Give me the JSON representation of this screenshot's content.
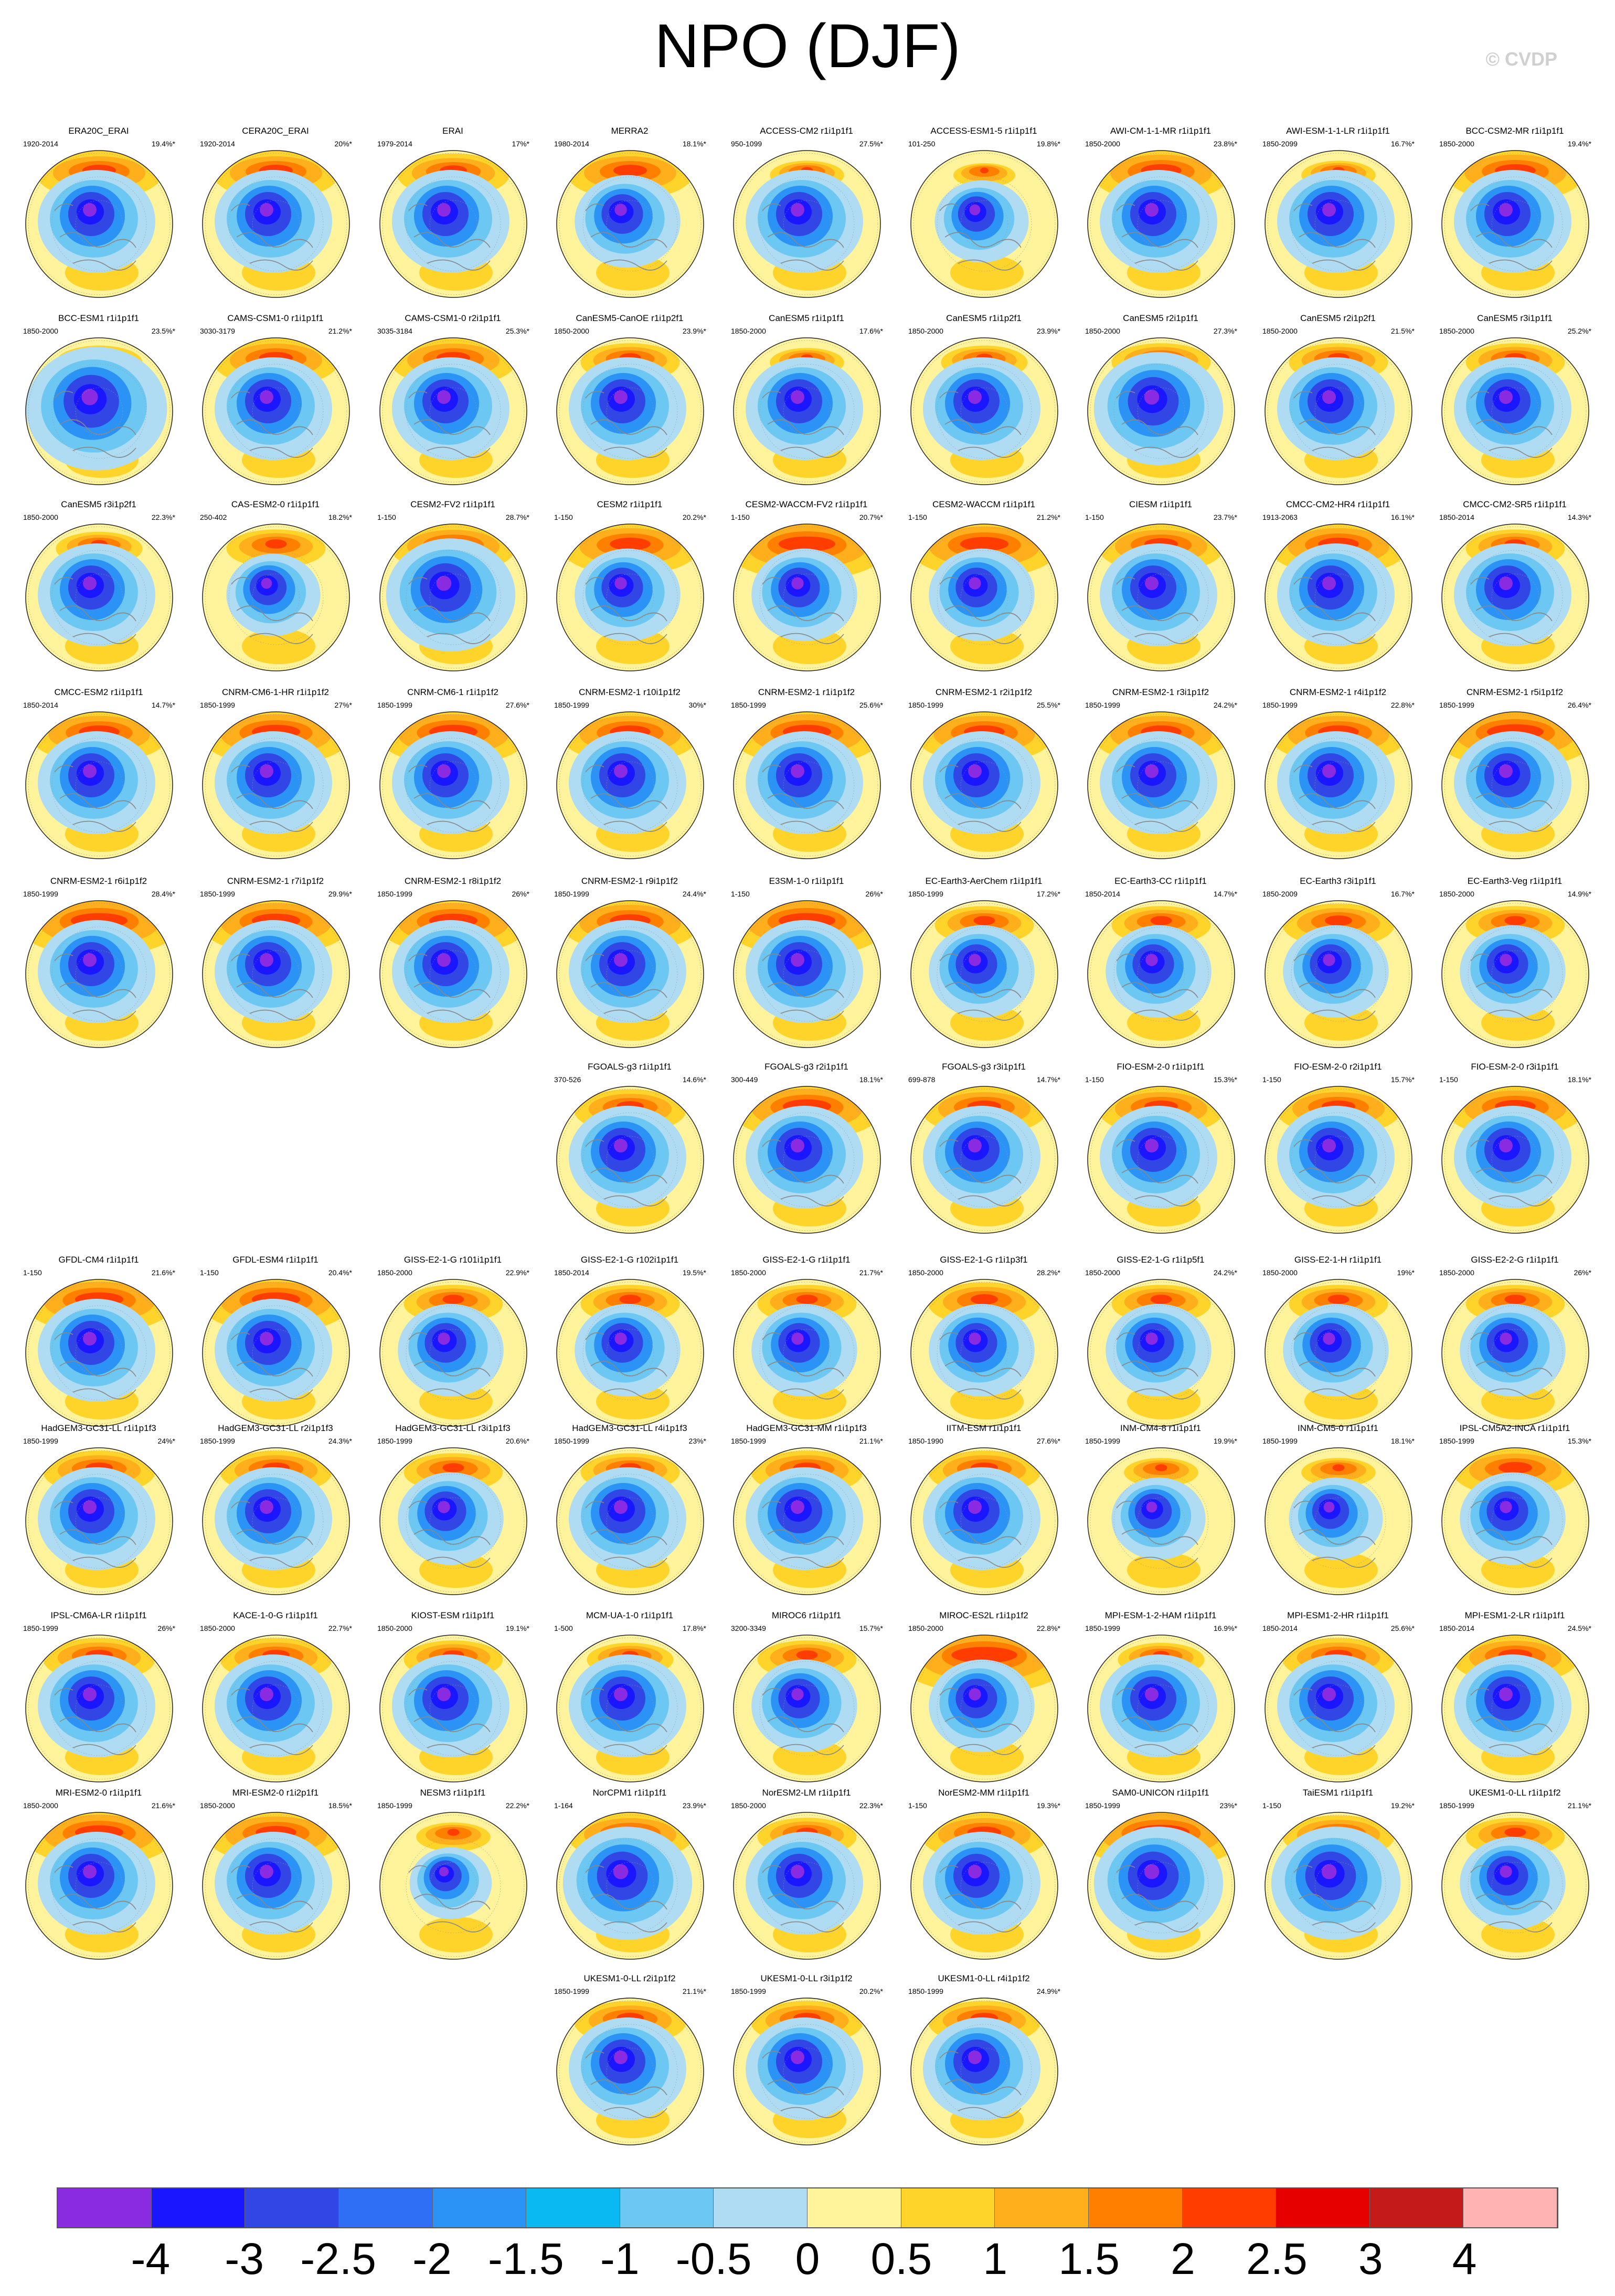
{
  "title": "NPO (DJF)",
  "watermark": "© CVDP",
  "chart_data": {
    "type": "heatmap",
    "title": "NPO (DJF)",
    "description_units": "",
    "colorbar": {
      "labels": [
        "-4",
        "-3",
        "-2.5",
        "-2",
        "-1.5",
        "-1",
        "-0.5",
        "0",
        "0.5",
        "1",
        "1.5",
        "2",
        "2.5",
        "3",
        "4"
      ],
      "colors": [
        "#8a2be2",
        "#1a16ff",
        "#3246e6",
        "#2f6ff5",
        "#2a93f5",
        "#0ab8f2",
        "#6cc8f2",
        "#afdcf2",
        "#fff39b",
        "#ffd42a",
        "#ffae1c",
        "#ff7f00",
        "#ff3d00",
        "#e60000",
        "#c41a1a",
        "#ffb3b3"
      ]
    },
    "panels": [
      {
        "name": "ERA20C_ERAI",
        "period": "1920-2014",
        "pct": "19.4%*",
        "row": 0,
        "col": 0,
        "pos": 1.0,
        "neg": 1.0
      },
      {
        "name": "CERA20C_ERAI",
        "period": "1920-2014",
        "pct": "20%*",
        "row": 0,
        "col": 1,
        "pos": 1.0,
        "neg": 1.0
      },
      {
        "name": "ERAI",
        "period": "1979-2014",
        "pct": "17%*",
        "row": 0,
        "col": 2,
        "pos": 0.9,
        "neg": 1.0
      },
      {
        "name": "MERRA2",
        "period": "1980-2014",
        "pct": "18.1%*",
        "row": 0,
        "col": 3,
        "pos": 1.0,
        "neg": 0.9
      },
      {
        "name": "ACCESS-CM2 r1i1p1f1",
        "period": "950-1099",
        "pct": "27.5%*",
        "row": 0,
        "col": 4,
        "pos": 0.6,
        "neg": 1.0
      },
      {
        "name": "ACCESS-ESM1-5 r1i1p1f1",
        "period": "101-250",
        "pct": "19.8%*",
        "row": 0,
        "col": 5,
        "pos": 0.5,
        "neg": 0.8
      },
      {
        "name": "AWI-CM-1-1-MR r1i1p1f1",
        "period": "1850-2000",
        "pct": "23.8%*",
        "row": 0,
        "col": 6,
        "pos": 1.1,
        "neg": 1.0
      },
      {
        "name": "AWI-ESM-1-1-LR r1i1p1f1",
        "period": "1850-2099",
        "pct": "16.7%*",
        "row": 0,
        "col": 7,
        "pos": 0.6,
        "neg": 1.0
      },
      {
        "name": "BCC-CSM2-MR r1i1p1f1",
        "period": "1850-2000",
        "pct": "19.4%*",
        "row": 0,
        "col": 8,
        "pos": 1.1,
        "neg": 1.0
      },
      {
        "name": "BCC-ESM1 r1i1p1f1",
        "period": "1850-2000",
        "pct": "23.5%*",
        "row": 1,
        "col": 0,
        "pos": 0.7,
        "neg": 1.2
      },
      {
        "name": "CAMS-CSM1-0 r1i1p1f1",
        "period": "3030-3179",
        "pct": "21.2%*",
        "row": 1,
        "col": 1,
        "pos": 1.0,
        "neg": 1.0
      },
      {
        "name": "CAMS-CSM1-0 r2i1p1f1",
        "period": "3035-3184",
        "pct": "25.3%*",
        "row": 1,
        "col": 2,
        "pos": 1.0,
        "neg": 1.0
      },
      {
        "name": "CanESM5-CanOE r1i1p2f1",
        "period": "1850-2000",
        "pct": "23.9%*",
        "row": 1,
        "col": 3,
        "pos": 0.8,
        "neg": 1.0
      },
      {
        "name": "CanESM5 r1i1p1f1",
        "period": "1850-2000",
        "pct": "17.6%*",
        "row": 1,
        "col": 4,
        "pos": 0.6,
        "neg": 1.0
      },
      {
        "name": "CanESM5 r1i1p2f1",
        "period": "1850-2000",
        "pct": "23.9%*",
        "row": 1,
        "col": 5,
        "pos": 0.7,
        "neg": 1.0
      },
      {
        "name": "CanESM5 r2i1p1f1",
        "period": "1850-2000",
        "pct": "27.3%*",
        "row": 1,
        "col": 6,
        "pos": 0.8,
        "neg": 1.1
      },
      {
        "name": "CanESM5 r2i1p2f1",
        "period": "1850-2000",
        "pct": "21.5%*",
        "row": 1,
        "col": 7,
        "pos": 0.8,
        "neg": 1.0
      },
      {
        "name": "CanESM5 r3i1p1f1",
        "period": "1850-2000",
        "pct": "25.2%*",
        "row": 1,
        "col": 8,
        "pos": 0.8,
        "neg": 1.0
      },
      {
        "name": "CanESM5 r3i1p2f1",
        "period": "1850-2000",
        "pct": "22.3%*",
        "row": 2,
        "col": 0,
        "pos": 0.7,
        "neg": 1.0
      },
      {
        "name": "CAS-ESM2-0 r1i1p1f1",
        "period": "250-402",
        "pct": "18.2%*",
        "row": 2,
        "col": 1,
        "pos": 0.8,
        "neg": 0.8
      },
      {
        "name": "CESM2-FV2 r1i1p1f1",
        "period": "1-150",
        "pct": "28.7%*",
        "row": 2,
        "col": 2,
        "pos": 1.0,
        "neg": 1.1
      },
      {
        "name": "CESM2 r1i1p1f1",
        "period": "1-150",
        "pct": "20.2%*",
        "row": 2,
        "col": 3,
        "pos": 1.1,
        "neg": 0.9
      },
      {
        "name": "CESM2-WACCM-FV2 r1i1p1f1",
        "period": "1-150",
        "pct": "20.7%*",
        "row": 2,
        "col": 4,
        "pos": 1.3,
        "neg": 0.9
      },
      {
        "name": "CESM2-WACCM r1i1p1f1",
        "period": "1-150",
        "pct": "21.2%*",
        "row": 2,
        "col": 5,
        "pos": 1.2,
        "neg": 0.9
      },
      {
        "name": "CIESM r1i1p1f1",
        "period": "1-150",
        "pct": "23.7%*",
        "row": 2,
        "col": 6,
        "pos": 1.0,
        "neg": 1.0
      },
      {
        "name": "CMCC-CM2-HR4 r1i1p1f1",
        "period": "1913-2063",
        "pct": "16.1%*",
        "row": 2,
        "col": 7,
        "pos": 1.1,
        "neg": 1.0
      },
      {
        "name": "CMCC-CM2-SR5 r1i1p1f1",
        "period": "1850-2014",
        "pct": "14.3%*",
        "row": 2,
        "col": 8,
        "pos": 0.8,
        "neg": 1.0
      },
      {
        "name": "CMCC-ESM2 r1i1p1f1",
        "period": "1850-2014",
        "pct": "14.7%*",
        "row": 3,
        "col": 0,
        "pos": 1.1,
        "neg": 1.0
      },
      {
        "name": "CNRM-CM6-1-HR r1i1p1f2",
        "period": "1850-1999",
        "pct": "27%*",
        "row": 3,
        "col": 1,
        "pos": 1.2,
        "neg": 1.0
      },
      {
        "name": "CNRM-CM6-1 r1i1p1f2",
        "period": "1850-1999",
        "pct": "27.6%*",
        "row": 3,
        "col": 2,
        "pos": 1.2,
        "neg": 1.0
      },
      {
        "name": "CNRM-ESM2-1 r10i1p1f2",
        "period": "1850-1999",
        "pct": "30%*",
        "row": 3,
        "col": 3,
        "pos": 1.1,
        "neg": 1.0
      },
      {
        "name": "CNRM-ESM2-1 r1i1p1f2",
        "period": "1850-1999",
        "pct": "25.6%*",
        "row": 3,
        "col": 4,
        "pos": 1.2,
        "neg": 1.0
      },
      {
        "name": "CNRM-ESM2-1 r2i1p1f2",
        "period": "1850-1999",
        "pct": "25.5%*",
        "row": 3,
        "col": 5,
        "pos": 1.1,
        "neg": 1.0
      },
      {
        "name": "CNRM-ESM2-1 r3i1p1f2",
        "period": "1850-1999",
        "pct": "24.2%*",
        "row": 3,
        "col": 6,
        "pos": 1.1,
        "neg": 1.0
      },
      {
        "name": "CNRM-ESM2-1 r4i1p1f2",
        "period": "1850-1999",
        "pct": "22.8%*",
        "row": 3,
        "col": 7,
        "pos": 1.1,
        "neg": 1.0
      },
      {
        "name": "CNRM-ESM2-1 r5i1p1f2",
        "period": "1850-1999",
        "pct": "26.4%*",
        "row": 3,
        "col": 8,
        "pos": 1.3,
        "neg": 1.0
      },
      {
        "name": "CNRM-ESM2-1 r6i1p1f2",
        "period": "1850-1999",
        "pct": "28.4%*",
        "row": 4,
        "col": 0,
        "pos": 1.3,
        "neg": 1.0
      },
      {
        "name": "CNRM-ESM2-1 r7i1p1f2",
        "period": "1850-1999",
        "pct": "29.9%*",
        "row": 4,
        "col": 1,
        "pos": 1.2,
        "neg": 1.0
      },
      {
        "name": "CNRM-ESM2-1 r8i1p1f2",
        "period": "1850-1999",
        "pct": "26%*",
        "row": 4,
        "col": 2,
        "pos": 1.2,
        "neg": 1.0
      },
      {
        "name": "CNRM-ESM2-1 r9i1p1f2",
        "period": "1850-1999",
        "pct": "24.4%*",
        "row": 4,
        "col": 3,
        "pos": 1.1,
        "neg": 1.0
      },
      {
        "name": "E3SM-1-0 r1i1p1f1",
        "period": "1-150",
        "pct": "26%*",
        "row": 4,
        "col": 4,
        "pos": 1.3,
        "neg": 1.0
      },
      {
        "name": "EC-Earth3-AerChem r1i1p1f1",
        "period": "1850-1999",
        "pct": "17.2%*",
        "row": 4,
        "col": 5,
        "pos": 0.8,
        "neg": 0.9
      },
      {
        "name": "EC-Earth3-CC r1i1p1f1",
        "period": "1850-2014",
        "pct": "14.7%*",
        "row": 4,
        "col": 6,
        "pos": 0.8,
        "neg": 0.9
      },
      {
        "name": "EC-Earth3 r3i1p1f1",
        "period": "1850-2009",
        "pct": "16.7%*",
        "row": 4,
        "col": 7,
        "pos": 0.9,
        "neg": 0.9
      },
      {
        "name": "EC-Earth3-Veg r1i1p1f1",
        "period": "1850-2000",
        "pct": "14.9%*",
        "row": 4,
        "col": 8,
        "pos": 0.8,
        "neg": 0.9
      },
      {
        "name": "FGOALS-g3 r1i1p1f1",
        "period": "370-526",
        "pct": "14.6%*",
        "row": 5,
        "col": 3,
        "pos": 0.9,
        "neg": 1.0
      },
      {
        "name": "FGOALS-g3 r2i1p1f1",
        "period": "300-449",
        "pct": "18.1%*",
        "row": 5,
        "col": 4,
        "pos": 1.2,
        "neg": 1.0
      },
      {
        "name": "FGOALS-g3 r3i1p1f1",
        "period": "699-878",
        "pct": "14.7%*",
        "row": 5,
        "col": 5,
        "pos": 1.0,
        "neg": 1.0
      },
      {
        "name": "FIO-ESM-2-0 r1i1p1f1",
        "period": "1-150",
        "pct": "15.3%*",
        "row": 5,
        "col": 6,
        "pos": 1.0,
        "neg": 1.0
      },
      {
        "name": "FIO-ESM-2-0 r2i1p1f1",
        "period": "1-150",
        "pct": "15.7%*",
        "row": 5,
        "col": 7,
        "pos": 1.0,
        "neg": 1.0
      },
      {
        "name": "FIO-ESM-2-0 r3i1p1f1",
        "period": "1-150",
        "pct": "18.1%*",
        "row": 5,
        "col": 8,
        "pos": 1.1,
        "neg": 1.0
      },
      {
        "name": "GFDL-CM4 r1i1p1f1",
        "period": "1-150",
        "pct": "21.6%*",
        "row": 6,
        "col": 0,
        "pos": 1.2,
        "neg": 1.0
      },
      {
        "name": "GFDL-ESM4 r1i1p1f1",
        "period": "1-150",
        "pct": "20.4%*",
        "row": 6,
        "col": 1,
        "pos": 1.2,
        "neg": 1.0
      },
      {
        "name": "GISS-E2-1-G r101i1p1f1",
        "period": "1850-2000",
        "pct": "22.9%*",
        "row": 6,
        "col": 2,
        "pos": 0.8,
        "neg": 0.9
      },
      {
        "name": "GISS-E2-1-G r102i1p1f1",
        "period": "1850-2014",
        "pct": "19.5%*",
        "row": 6,
        "col": 3,
        "pos": 0.8,
        "neg": 0.9
      },
      {
        "name": "GISS-E2-1-G r1i1p1f1",
        "period": "1850-2000",
        "pct": "21.7%*",
        "row": 6,
        "col": 4,
        "pos": 0.8,
        "neg": 0.9
      },
      {
        "name": "GISS-E2-1-G r1i1p3f1",
        "period": "1850-2000",
        "pct": "28.2%*",
        "row": 6,
        "col": 5,
        "pos": 0.9,
        "neg": 0.9
      },
      {
        "name": "GISS-E2-1-G r1i1p5f1",
        "period": "1850-2000",
        "pct": "24.2%*",
        "row": 6,
        "col": 6,
        "pos": 0.8,
        "neg": 0.9
      },
      {
        "name": "GISS-E2-1-H r1i1p1f1",
        "period": "1850-2000",
        "pct": "19%*",
        "row": 6,
        "col": 7,
        "pos": 0.8,
        "neg": 0.9
      },
      {
        "name": "GISS-E2-2-G r1i1p1f1",
        "period": "1850-2000",
        "pct": "26%*",
        "row": 6,
        "col": 8,
        "pos": 0.8,
        "neg": 0.9
      },
      {
        "name": "HadGEM3-GC31-LL r1i1p1f3",
        "period": "1850-1999",
        "pct": "24%*",
        "row": 7,
        "col": 0,
        "pos": 0.9,
        "neg": 1.0
      },
      {
        "name": "HadGEM3-GC31-LL r2i1p1f3",
        "period": "1850-1999",
        "pct": "24.3%*",
        "row": 7,
        "col": 1,
        "pos": 0.9,
        "neg": 1.0
      },
      {
        "name": "HadGEM3-GC31-LL r3i1p1f3",
        "period": "1850-1999",
        "pct": "20.6%*",
        "row": 7,
        "col": 2,
        "pos": 0.8,
        "neg": 0.9
      },
      {
        "name": "HadGEM3-GC31-LL r4i1p1f3",
        "period": "1850-1999",
        "pct": "23%*",
        "row": 7,
        "col": 3,
        "pos": 0.8,
        "neg": 1.0
      },
      {
        "name": "HadGEM3-GC31-MM r1i1p1f3",
        "period": "1850-1999",
        "pct": "21.1%*",
        "row": 7,
        "col": 4,
        "pos": 0.9,
        "neg": 1.0
      },
      {
        "name": "IITM-ESM r1i1p1f1",
        "period": "1850-1990",
        "pct": "27.6%*",
        "row": 7,
        "col": 5,
        "pos": 0.9,
        "neg": 1.0
      },
      {
        "name": "INM-CM4-8 r1i1p1f1",
        "period": "1850-1999",
        "pct": "19.9%*",
        "row": 7,
        "col": 6,
        "pos": 0.6,
        "neg": 0.8
      },
      {
        "name": "INM-CM5-0 r1i1p1f1",
        "period": "1850-1999",
        "pct": "18.1%*",
        "row": 7,
        "col": 7,
        "pos": 0.6,
        "neg": 0.8
      },
      {
        "name": "IPSL-CM5A2-INCA r1i1p1f1",
        "period": "1850-1999",
        "pct": "15.3%*",
        "row": 7,
        "col": 8,
        "pos": 1.0,
        "neg": 0.9
      },
      {
        "name": "IPSL-CM6A-LR r1i1p1f1",
        "period": "1850-1999",
        "pct": "26%*",
        "row": 8,
        "col": 0,
        "pos": 0.9,
        "neg": 1.0
      },
      {
        "name": "KACE-1-0-G r1i1p1f1",
        "period": "1850-2000",
        "pct": "22.7%*",
        "row": 8,
        "col": 1,
        "pos": 0.9,
        "neg": 1.0
      },
      {
        "name": "KIOST-ESM r1i1p1f1",
        "period": "1850-2000",
        "pct": "19.1%*",
        "row": 8,
        "col": 2,
        "pos": 0.8,
        "neg": 1.0
      },
      {
        "name": "MCM-UA-1-0 r1i1p1f1",
        "period": "1-500",
        "pct": "17.8%*",
        "row": 8,
        "col": 3,
        "pos": 0.7,
        "neg": 1.0
      },
      {
        "name": "MIROC6 r1i1p1f1",
        "period": "3200-3349",
        "pct": "15.7%*",
        "row": 8,
        "col": 4,
        "pos": 0.8,
        "neg": 0.9
      },
      {
        "name": "MIROC-ES2L r1i1p1f2",
        "period": "1850-2000",
        "pct": "22.8%*",
        "row": 8,
        "col": 5,
        "pos": 1.4,
        "neg": 0.9
      },
      {
        "name": "MPI-ESM-1-2-HAM r1i1p1f1",
        "period": "1850-1999",
        "pct": "16.9%*",
        "row": 8,
        "col": 6,
        "pos": 0.7,
        "neg": 1.0
      },
      {
        "name": "MPI-ESM1-2-HR r1i1p1f1",
        "period": "1850-2014",
        "pct": "25.6%*",
        "row": 8,
        "col": 7,
        "pos": 0.9,
        "neg": 1.0
      },
      {
        "name": "MPI-ESM1-2-LR r1i1p1f1",
        "period": "1850-2014",
        "pct": "24.5%*",
        "row": 8,
        "col": 8,
        "pos": 1.0,
        "neg": 1.0
      },
      {
        "name": "MRI-ESM2-0 r1i1p1f1",
        "period": "1850-2000",
        "pct": "21.6%*",
        "row": 9,
        "col": 0,
        "pos": 1.2,
        "neg": 1.0
      },
      {
        "name": "MRI-ESM2-0 r1i2p1f1",
        "period": "1850-2000",
        "pct": "18.5%*",
        "row": 9,
        "col": 1,
        "pos": 1.1,
        "neg": 1.0
      },
      {
        "name": "NESM3 r1i1p1f1",
        "period": "1850-1999",
        "pct": "22.2%*",
        "row": 9,
        "col": 2,
        "pos": 0.6,
        "neg": 0.7
      },
      {
        "name": "NorCPM1 r1i1p1f1",
        "period": "1-164",
        "pct": "23.9%*",
        "row": 9,
        "col": 3,
        "pos": 1.0,
        "neg": 1.1
      },
      {
        "name": "NorESM2-LM r1i1p1f1",
        "period": "1850-2000",
        "pct": "22.3%*",
        "row": 9,
        "col": 4,
        "pos": 0.8,
        "neg": 1.0
      },
      {
        "name": "NorESM2-MM r1i1p1f1",
        "period": "1-150",
        "pct": "19.3%*",
        "row": 9,
        "col": 5,
        "pos": 1.0,
        "neg": 1.0
      },
      {
        "name": "SAM0-UNICON r1i1p1f1",
        "period": "1850-1999",
        "pct": "23%*",
        "row": 9,
        "col": 6,
        "pos": 1.3,
        "neg": 1.1
      },
      {
        "name": "TaiESM1 r1i1p1f1",
        "period": "1-150",
        "pct": "19.2%*",
        "row": 9,
        "col": 7,
        "pos": 0.9,
        "neg": 1.1
      },
      {
        "name": "UKESM1-0-LL r1i1p1f2",
        "period": "1850-1999",
        "pct": "21.1%*",
        "row": 9,
        "col": 8,
        "pos": 0.8,
        "neg": 0.9
      },
      {
        "name": "UKESM1-0-LL r2i1p1f2",
        "period": "1850-1999",
        "pct": "21.1%*",
        "row": 10,
        "col": 3,
        "pos": 0.9,
        "neg": 1.0
      },
      {
        "name": "UKESM1-0-LL r3i1p1f2",
        "period": "1850-1999",
        "pct": "20.2%*",
        "row": 10,
        "col": 4,
        "pos": 0.9,
        "neg": 1.0
      },
      {
        "name": "UKESM1-0-LL r4i1p1f2",
        "period": "1850-1999",
        "pct": "24.9%*",
        "row": 10,
        "col": 5,
        "pos": 0.9,
        "neg": 1.0
      }
    ]
  }
}
